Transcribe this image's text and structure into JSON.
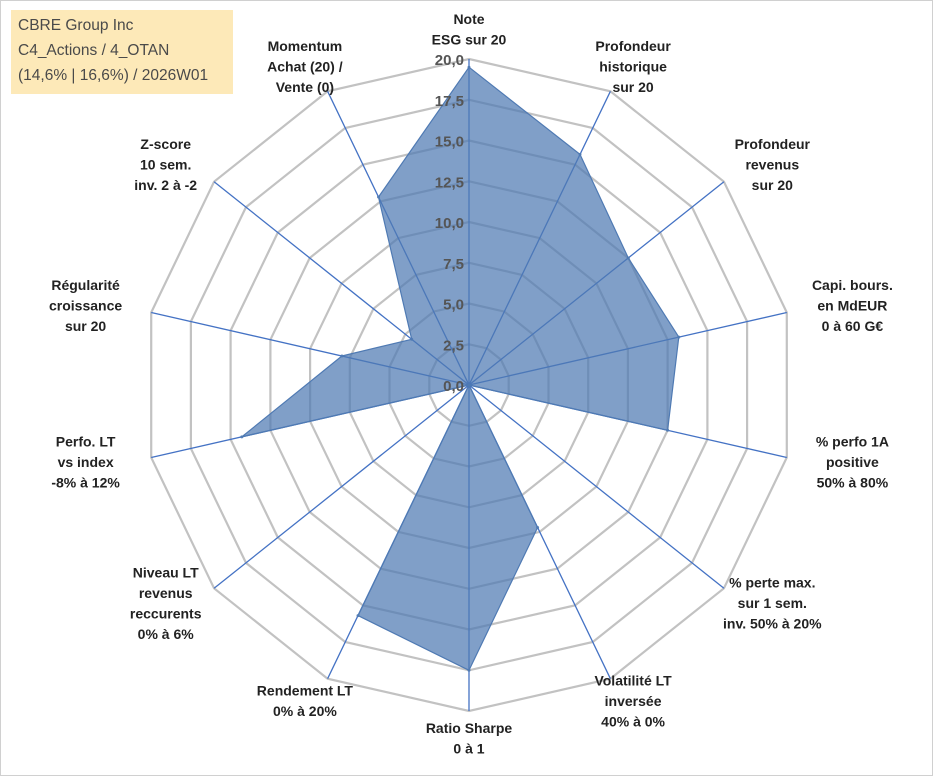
{
  "info": {
    "company": "CBRE Group Inc",
    "portfolio": "C4_Actions / 4_OTAN",
    "stats": "(14,6% | 16,6%) / 2026W01"
  },
  "colors": {
    "grid": "#c2c2c2",
    "spoke": "#4472c4",
    "fill": "#4f7ab3",
    "fill_opacity": 0.72,
    "info_bg": "#fde9b8"
  },
  "chart_data": {
    "type": "radar",
    "title": "",
    "rlim": [
      0,
      20
    ],
    "ticks": [
      "0,0",
      "2,5",
      "5,0",
      "7,5",
      "10,0",
      "12,5",
      "15,0",
      "17,5",
      "20,0"
    ],
    "tick_values": [
      0,
      2.5,
      5,
      7.5,
      10,
      12.5,
      15,
      17.5,
      20
    ],
    "grid": true,
    "axes": [
      {
        "label": [
          "Note",
          "ESG sur 20"
        ],
        "value": 19.5
      },
      {
        "label": [
          "Profondeur",
          "historique",
          "sur 20"
        ],
        "value": 15.7
      },
      {
        "label": [
          "Profondeur",
          "revenus",
          "sur 20"
        ],
        "value": 12.5
      },
      {
        "label": [
          "Capi. bours.",
          "en MdEUR",
          "0 à 60 G€"
        ],
        "value": 13.2
      },
      {
        "label": [
          "% perfo 1A",
          "positive",
          "50% à 80%"
        ],
        "value": 12.5
      },
      {
        "label": [
          "% perte max.",
          "sur 1 sem.",
          "inv. 50% à 20%"
        ],
        "value": 0.0
      },
      {
        "label": [
          "Volatilité LT",
          "inversée",
          "40% à 0%"
        ],
        "value": 9.7
      },
      {
        "label": [
          "Ratio Sharpe",
          "0 à 1"
        ],
        "value": 17.5
      },
      {
        "label": [
          "Rendement LT",
          "0% à 20%"
        ],
        "value": 15.7
      },
      {
        "label": [
          "Niveau LT",
          "revenus",
          "reccurents",
          "0% à 6%"
        ],
        "value": 0.0
      },
      {
        "label": [
          "Perfo. LT",
          "vs index",
          "-8% à 12%"
        ],
        "value": 14.3
      },
      {
        "label": [
          "Régularité",
          "croissance",
          "sur 20"
        ],
        "value": 8.0
      },
      {
        "label": [
          "Z-score",
          "10 sem.",
          "inv. 2 à -2"
        ],
        "value": 4.5
      },
      {
        "label": [
          "Momentum",
          "Achat (20) /",
          "Vente (0)"
        ],
        "value": 12.8
      }
    ]
  }
}
